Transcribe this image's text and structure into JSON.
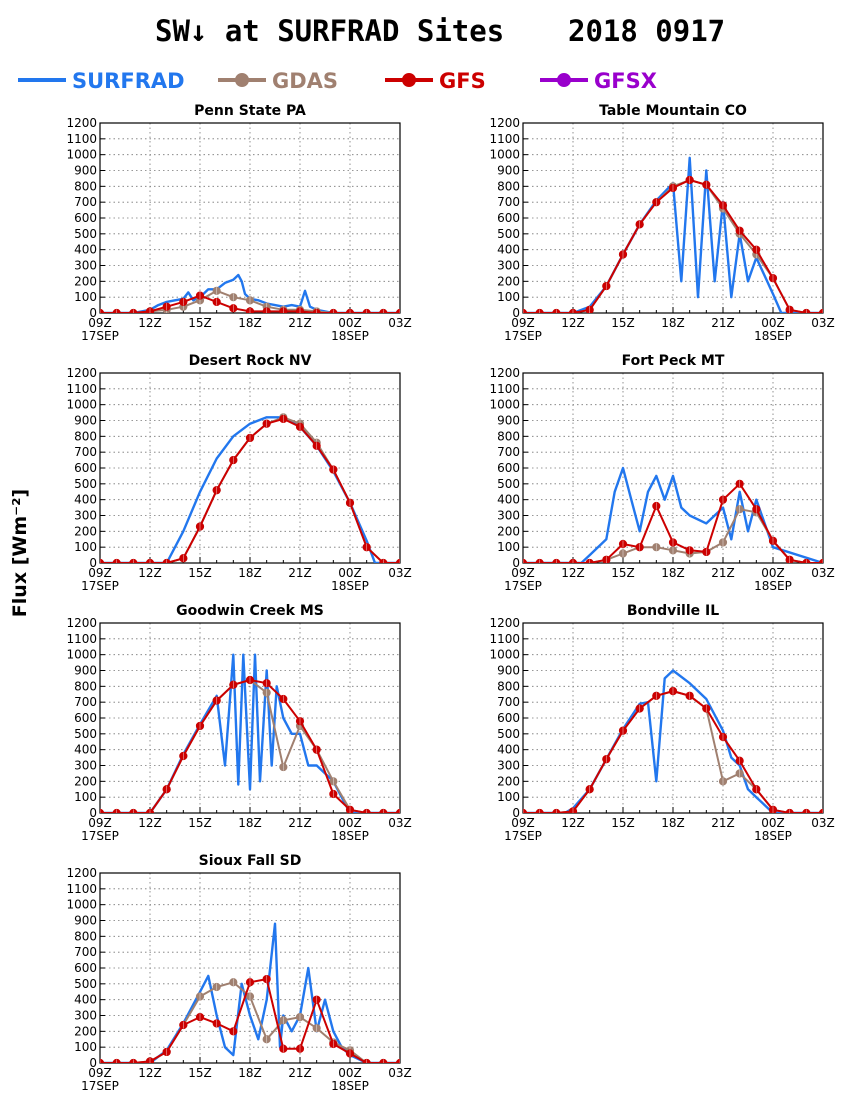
{
  "title": "SW↓ at SURFRAD Sites",
  "date": "2018 0917",
  "ylabel": "Flux [Wm⁻²]",
  "legend": [
    {
      "name": "SURFRAD",
      "color": "#2277ee",
      "marker": false
    },
    {
      "name": "GDAS",
      "color": "#a08070",
      "marker": true
    },
    {
      "name": "GFS",
      "color": "#cc0000",
      "marker": true
    },
    {
      "name": "GFSX",
      "color": "#9900cc",
      "marker": true
    }
  ],
  "colors": {
    "surfrad": "#2277ee",
    "gdas": "#a08070",
    "gfs": "#cc0000",
    "gfsx": "#9900cc"
  },
  "axis": {
    "xlim": [
      9,
      27
    ],
    "ylim": [
      0,
      1200
    ],
    "yticks": [
      0,
      100,
      200,
      300,
      400,
      500,
      600,
      700,
      800,
      900,
      1000,
      1100,
      1200
    ],
    "xticks": [
      {
        "x": 9,
        "label": "09Z",
        "sub": "17SEP"
      },
      {
        "x": 12,
        "label": "12Z",
        "sub": ""
      },
      {
        "x": 15,
        "label": "15Z",
        "sub": ""
      },
      {
        "x": 18,
        "label": "18Z",
        "sub": ""
      },
      {
        "x": 21,
        "label": "21Z",
        "sub": ""
      },
      {
        "x": 24,
        "label": "00Z",
        "sub": "18SEP"
      },
      {
        "x": 27,
        "label": "03Z",
        "sub": ""
      }
    ],
    "grid": true
  },
  "chart_data": [
    {
      "type": "line",
      "title": "Penn State PA",
      "series": [
        {
          "name": "SURFRAD",
          "x": [
            9,
            11,
            12,
            12.5,
            13,
            13.5,
            14,
            14.3,
            14.6,
            15,
            15.5,
            16,
            16.5,
            17,
            17.3,
            17.5,
            17.7,
            18,
            18.5,
            19,
            19.5,
            20,
            20.5,
            21,
            21.3,
            21.6,
            22,
            22.5,
            23,
            24,
            27
          ],
          "y": [
            0,
            0,
            20,
            50,
            70,
            80,
            90,
            130,
            80,
            100,
            150,
            150,
            190,
            210,
            240,
            200,
            120,
            90,
            80,
            60,
            50,
            40,
            50,
            40,
            140,
            40,
            20,
            10,
            0,
            0,
            0
          ]
        },
        {
          "name": "GDAS",
          "x": [
            9,
            10,
            11,
            12,
            13,
            14,
            15,
            16,
            17,
            18,
            19,
            20,
            21,
            22,
            23,
            24,
            25,
            26,
            27
          ],
          "y": [
            0,
            0,
            0,
            10,
            20,
            40,
            80,
            140,
            100,
            80,
            40,
            20,
            20,
            10,
            0,
            0,
            0,
            0,
            0
          ]
        },
        {
          "name": "GFS",
          "x": [
            9,
            10,
            11,
            12,
            13,
            14,
            15,
            16,
            17,
            18,
            19,
            20,
            21,
            22,
            23,
            24,
            25,
            26,
            27
          ],
          "y": [
            0,
            0,
            0,
            10,
            40,
            70,
            110,
            70,
            30,
            10,
            10,
            10,
            10,
            0,
            0,
            0,
            0,
            0,
            0
          ]
        }
      ]
    },
    {
      "type": "line",
      "title": "Table Mountain CO",
      "series": [
        {
          "name": "SURFRAD",
          "x": [
            9,
            12,
            13,
            14,
            15,
            16,
            17,
            18,
            18.5,
            19,
            19.5,
            20,
            20.5,
            21,
            21.5,
            22,
            22.5,
            23,
            24,
            24.5,
            27
          ],
          "y": [
            0,
            0,
            40,
            170,
            370,
            560,
            710,
            820,
            200,
            980,
            100,
            900,
            200,
            700,
            100,
            500,
            200,
            350,
            120,
            0,
            0
          ]
        },
        {
          "name": "GDAS",
          "x": [
            9,
            10,
            11,
            12,
            13,
            14,
            15,
            16,
            17,
            18,
            19,
            20,
            21,
            22,
            23,
            24,
            25,
            26,
            27
          ],
          "y": [
            0,
            0,
            0,
            0,
            20,
            170,
            370,
            560,
            700,
            800,
            840,
            810,
            660,
            500,
            370,
            220,
            20,
            0,
            0
          ]
        },
        {
          "name": "GFS",
          "x": [
            9,
            10,
            11,
            12,
            13,
            14,
            15,
            16,
            17,
            18,
            19,
            20,
            21,
            22,
            23,
            24,
            25,
            26,
            27
          ],
          "y": [
            0,
            0,
            0,
            0,
            20,
            170,
            370,
            560,
            700,
            790,
            840,
            810,
            680,
            520,
            400,
            220,
            20,
            0,
            0
          ]
        }
      ]
    },
    {
      "type": "line",
      "title": "Desert Rock NV",
      "series": [
        {
          "name": "SURFRAD",
          "x": [
            9,
            13,
            14,
            15,
            16,
            17,
            18,
            19,
            20,
            21,
            22,
            23,
            24,
            25,
            25.5,
            27
          ],
          "y": [
            0,
            0,
            200,
            450,
            660,
            800,
            880,
            920,
            920,
            860,
            740,
            580,
            380,
            140,
            0,
            0
          ]
        },
        {
          "name": "GDAS",
          "x": [
            9,
            10,
            11,
            12,
            13,
            14,
            15,
            16,
            17,
            18,
            19,
            20,
            21,
            22,
            23,
            24,
            25,
            26,
            27
          ],
          "y": [
            0,
            0,
            0,
            0,
            0,
            30,
            230,
            460,
            650,
            790,
            880,
            920,
            880,
            760,
            590,
            380,
            100,
            0,
            0
          ]
        },
        {
          "name": "GFS",
          "x": [
            9,
            10,
            11,
            12,
            13,
            14,
            15,
            16,
            17,
            18,
            19,
            20,
            21,
            22,
            23,
            24,
            25,
            26,
            27
          ],
          "y": [
            0,
            0,
            0,
            0,
            0,
            30,
            230,
            460,
            650,
            790,
            880,
            910,
            860,
            740,
            590,
            380,
            100,
            0,
            0
          ]
        }
      ]
    },
    {
      "type": "line",
      "title": "Fort Peck MT",
      "series": [
        {
          "name": "SURFRAD",
          "x": [
            9,
            12.5,
            13,
            14,
            14.5,
            15,
            15.5,
            16,
            16.5,
            17,
            17.5,
            18,
            18.5,
            19,
            20,
            21,
            21.5,
            22,
            22.5,
            23,
            24,
            27
          ],
          "y": [
            0,
            0,
            50,
            150,
            450,
            600,
            400,
            200,
            450,
            550,
            400,
            550,
            350,
            300,
            250,
            350,
            150,
            450,
            200,
            400,
            100,
            0
          ]
        },
        {
          "name": "GDAS",
          "x": [
            9,
            10,
            11,
            12,
            13,
            14,
            15,
            16,
            17,
            18,
            19,
            20,
            21,
            22,
            23,
            24,
            25,
            26,
            27
          ],
          "y": [
            0,
            0,
            0,
            0,
            0,
            20,
            60,
            100,
            100,
            80,
            60,
            70,
            130,
            340,
            320,
            140,
            20,
            0,
            0
          ]
        },
        {
          "name": "GFS",
          "x": [
            9,
            10,
            11,
            12,
            13,
            14,
            15,
            16,
            17,
            18,
            19,
            20,
            21,
            22,
            23,
            24,
            25,
            26,
            27
          ],
          "y": [
            0,
            0,
            0,
            0,
            0,
            20,
            120,
            100,
            360,
            130,
            80,
            70,
            400,
            500,
            340,
            140,
            20,
            0,
            0
          ]
        }
      ]
    },
    {
      "type": "line",
      "title": "Goodwin Creek MS",
      "series": [
        {
          "name": "SURFRAD",
          "x": [
            9,
            12,
            13,
            14,
            15,
            16,
            16.5,
            17,
            17.3,
            17.6,
            18,
            18.3,
            18.6,
            19,
            19.3,
            19.6,
            20,
            20.5,
            21,
            21.5,
            22,
            23,
            24,
            24.3,
            27
          ],
          "y": [
            0,
            0,
            150,
            370,
            560,
            740,
            300,
            1000,
            180,
            1000,
            150,
            1000,
            200,
            900,
            300,
            800,
            600,
            500,
            500,
            300,
            300,
            200,
            0,
            0,
            0
          ]
        },
        {
          "name": "GDAS",
          "x": [
            9,
            10,
            11,
            12,
            13,
            14,
            15,
            16,
            17,
            18,
            19,
            20,
            21,
            22,
            23,
            24,
            25,
            26,
            27
          ],
          "y": [
            0,
            0,
            0,
            0,
            150,
            360,
            550,
            710,
            810,
            840,
            760,
            290,
            550,
            400,
            200,
            20,
            0,
            0,
            0
          ]
        },
        {
          "name": "GFS",
          "x": [
            9,
            10,
            11,
            12,
            13,
            14,
            15,
            16,
            17,
            18,
            19,
            20,
            21,
            22,
            23,
            24,
            25,
            26,
            27
          ],
          "y": [
            0,
            0,
            0,
            0,
            150,
            360,
            550,
            710,
            810,
            840,
            820,
            720,
            580,
            400,
            120,
            20,
            0,
            0,
            0
          ]
        }
      ]
    },
    {
      "type": "line",
      "title": "Bondville IL",
      "series": [
        {
          "name": "SURFRAD",
          "x": [
            9,
            11.5,
            12,
            13,
            14,
            15,
            16,
            16.5,
            17,
            17.5,
            18,
            19,
            20,
            21,
            21.5,
            22,
            22.5,
            23,
            23.5,
            24,
            27
          ],
          "y": [
            0,
            0,
            30,
            150,
            340,
            530,
            690,
            700,
            200,
            850,
            900,
            820,
            720,
            520,
            350,
            300,
            150,
            100,
            50,
            0,
            0
          ]
        },
        {
          "name": "GDAS",
          "x": [
            9,
            10,
            11,
            12,
            13,
            14,
            15,
            16,
            17,
            18,
            19,
            20,
            21,
            22,
            23,
            24,
            25,
            26,
            27
          ],
          "y": [
            0,
            0,
            0,
            10,
            150,
            340,
            520,
            660,
            740,
            770,
            740,
            660,
            200,
            250,
            150,
            20,
            0,
            0,
            0
          ]
        },
        {
          "name": "GFS",
          "x": [
            9,
            10,
            11,
            12,
            13,
            14,
            15,
            16,
            17,
            18,
            19,
            20,
            21,
            22,
            23,
            24,
            25,
            26,
            27
          ],
          "y": [
            0,
            0,
            0,
            10,
            150,
            340,
            520,
            660,
            740,
            770,
            740,
            660,
            480,
            330,
            150,
            20,
            0,
            0,
            0
          ]
        }
      ]
    },
    {
      "type": "line",
      "title": "Sioux Fall SD",
      "series": [
        {
          "name": "SURFRAD",
          "x": [
            9,
            12,
            13,
            14,
            15,
            15.5,
            16,
            16.5,
            17,
            17.5,
            18,
            18.5,
            19,
            19.5,
            19.8,
            20,
            20.5,
            21,
            21.5,
            22,
            22.5,
            23,
            23.5,
            24,
            25,
            27
          ],
          "y": [
            0,
            0,
            80,
            250,
            450,
            550,
            300,
            100,
            50,
            500,
            300,
            150,
            400,
            880,
            100,
            300,
            200,
            300,
            600,
            200,
            400,
            200,
            100,
            50,
            0,
            0
          ]
        },
        {
          "name": "GDAS",
          "x": [
            9,
            10,
            11,
            12,
            13,
            14,
            15,
            16,
            17,
            18,
            19,
            20,
            21,
            22,
            23,
            24,
            25,
            26,
            27
          ],
          "y": [
            0,
            0,
            0,
            10,
            70,
            240,
            420,
            480,
            510,
            420,
            150,
            270,
            290,
            220,
            130,
            80,
            0,
            0,
            0
          ]
        },
        {
          "name": "GFS",
          "x": [
            9,
            10,
            11,
            12,
            13,
            14,
            15,
            16,
            17,
            18,
            19,
            20,
            21,
            22,
            23,
            24,
            25,
            26,
            27
          ],
          "y": [
            0,
            0,
            0,
            10,
            70,
            240,
            290,
            250,
            200,
            510,
            530,
            90,
            90,
            400,
            120,
            60,
            0,
            0,
            0
          ]
        }
      ]
    }
  ]
}
